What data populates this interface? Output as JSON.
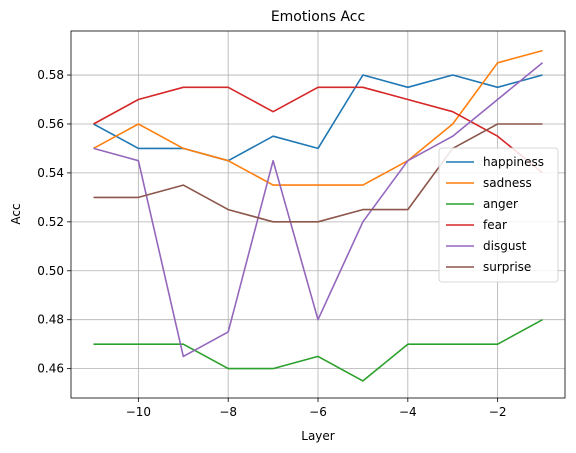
{
  "chart_data": {
    "type": "line",
    "title": "Emotions Acc",
    "xlabel": "Layer",
    "ylabel": "Acc",
    "x": [
      -11,
      -10,
      -9,
      -8,
      -7,
      -6,
      -5,
      -4,
      -3,
      -2,
      -1
    ],
    "xlim": [
      -11.5,
      -0.5
    ],
    "ylim": [
      0.448,
      0.598
    ],
    "xticks": [
      -10,
      -8,
      -6,
      -4,
      -2
    ],
    "xtick_labels": [
      "−10",
      "−8",
      "−6",
      "−4",
      "−2"
    ],
    "yticks": [
      0.46,
      0.48,
      0.5,
      0.52,
      0.54,
      0.56,
      0.58
    ],
    "ytick_labels": [
      "0.46",
      "0.48",
      "0.50",
      "0.52",
      "0.54",
      "0.56",
      "0.58"
    ],
    "grid": true,
    "legend_position": "center-right",
    "series": [
      {
        "name": "happiness",
        "color": "#1f77b4",
        "values": [
          0.56,
          0.55,
          0.55,
          0.545,
          0.555,
          0.55,
          0.58,
          0.575,
          0.58,
          0.575,
          0.58
        ]
      },
      {
        "name": "sadness",
        "color": "#ff7f0e",
        "values": [
          0.55,
          0.56,
          0.55,
          0.545,
          0.535,
          0.535,
          0.535,
          0.545,
          0.56,
          0.585,
          0.59
        ]
      },
      {
        "name": "anger",
        "color": "#2ca02c",
        "values": [
          0.47,
          0.47,
          0.47,
          0.46,
          0.46,
          0.465,
          0.455,
          0.47,
          0.47,
          0.47,
          0.48
        ]
      },
      {
        "name": "fear",
        "color": "#d62728",
        "values": [
          0.56,
          0.57,
          0.575,
          0.575,
          0.565,
          0.575,
          0.575,
          0.57,
          0.565,
          0.555,
          0.54
        ]
      },
      {
        "name": "disgust",
        "color": "#9467bd",
        "values": [
          0.55,
          0.545,
          0.465,
          0.475,
          0.545,
          0.48,
          0.52,
          0.545,
          0.555,
          0.57,
          0.585
        ]
      },
      {
        "name": "surprise",
        "color": "#8c564b",
        "values": [
          0.53,
          0.53,
          0.535,
          0.525,
          0.52,
          0.52,
          0.525,
          0.525,
          0.55,
          0.56,
          0.56
        ]
      }
    ]
  }
}
